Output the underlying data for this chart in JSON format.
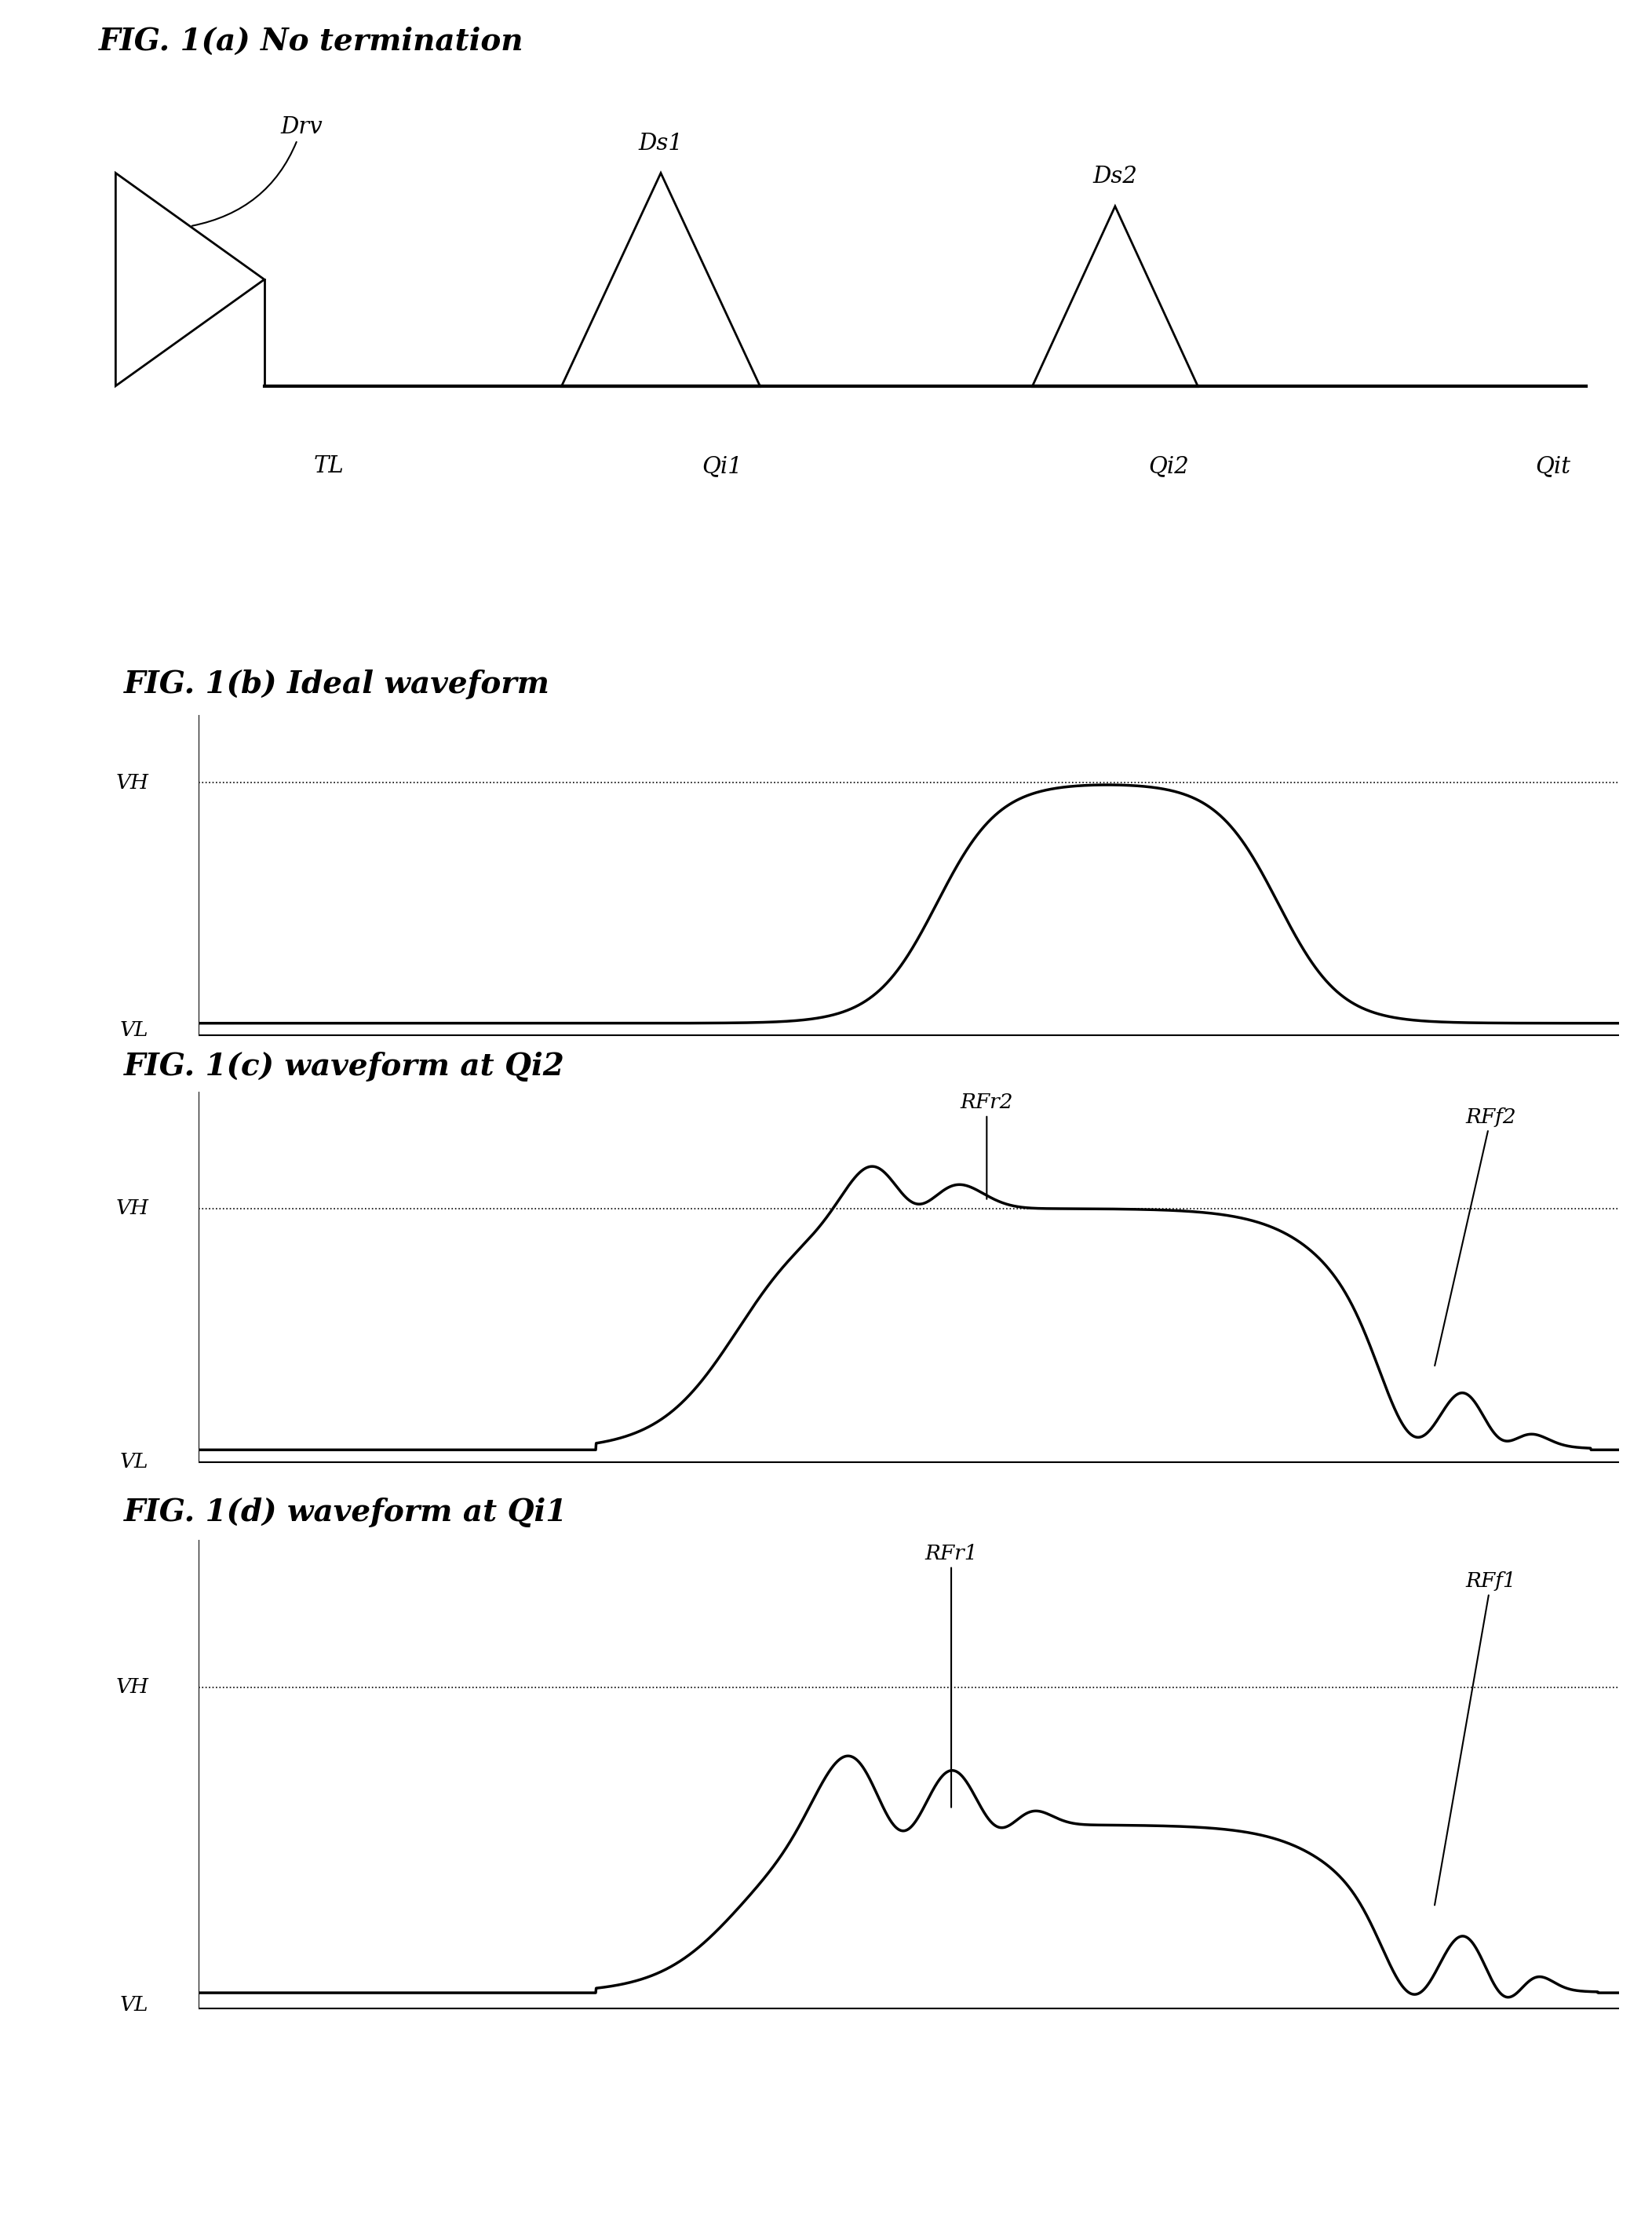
{
  "fig_title_a": "FIG. 1(a) No termination",
  "fig_title_b": "FIG. 1(b) Ideal waveform",
  "fig_title_c": "FIG. 1(c) waveform at Qi2",
  "fig_title_d": "FIG. 1(d) waveform at Qi1",
  "label_Drv": "Drv",
  "label_Ds1": "Ds1",
  "label_Ds2": "Ds2",
  "label_TL": "TL",
  "label_Qi1": "Qi1",
  "label_Qi2": "Qi2",
  "label_Qit": "Qit",
  "label_VH": "VH",
  "label_VL": "VL",
  "label_RFr2": "RFr2",
  "label_RFf2": "RFf2",
  "label_RFr1": "RFr1",
  "label_RFf1": "RFf1",
  "bg_color": "#ffffff",
  "line_color": "#000000",
  "title_fontsize": 28,
  "label_fontsize": 21,
  "small_label_fontsize": 19
}
